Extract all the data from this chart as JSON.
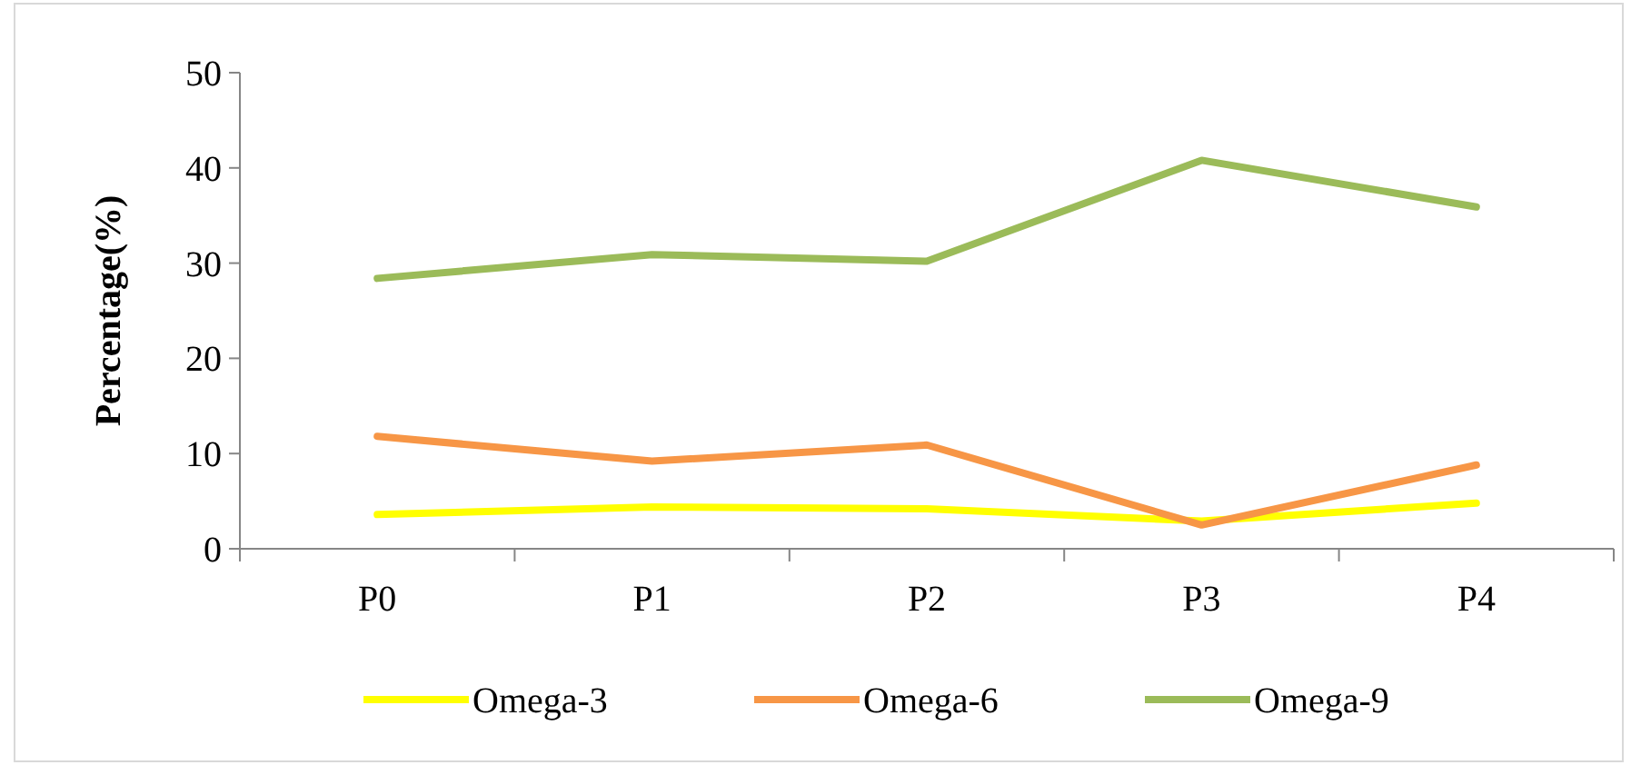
{
  "chart_data": {
    "type": "line",
    "ylabel": "Percentage(%)",
    "categories": [
      "P0",
      "P1",
      "P2",
      "P3",
      "P4"
    ],
    "ylim": [
      0,
      50
    ],
    "yticks": [
      0,
      10,
      20,
      30,
      40,
      50
    ],
    "grid": false,
    "legend": "bottom",
    "marker": "none",
    "line_style": "solid",
    "series": [
      {
        "name": "Omega-3",
        "color": "#ffff00",
        "values": [
          3.6,
          4.4,
          4.2,
          2.9,
          4.8
        ]
      },
      {
        "name": "Omega-6",
        "color": "#f79646",
        "values": [
          11.8,
          9.2,
          10.9,
          2.5,
          8.8
        ]
      },
      {
        "name": "Omega-9",
        "color": "#9bbb59",
        "values": [
          28.4,
          30.9,
          30.2,
          40.8,
          35.9
        ]
      }
    ]
  }
}
